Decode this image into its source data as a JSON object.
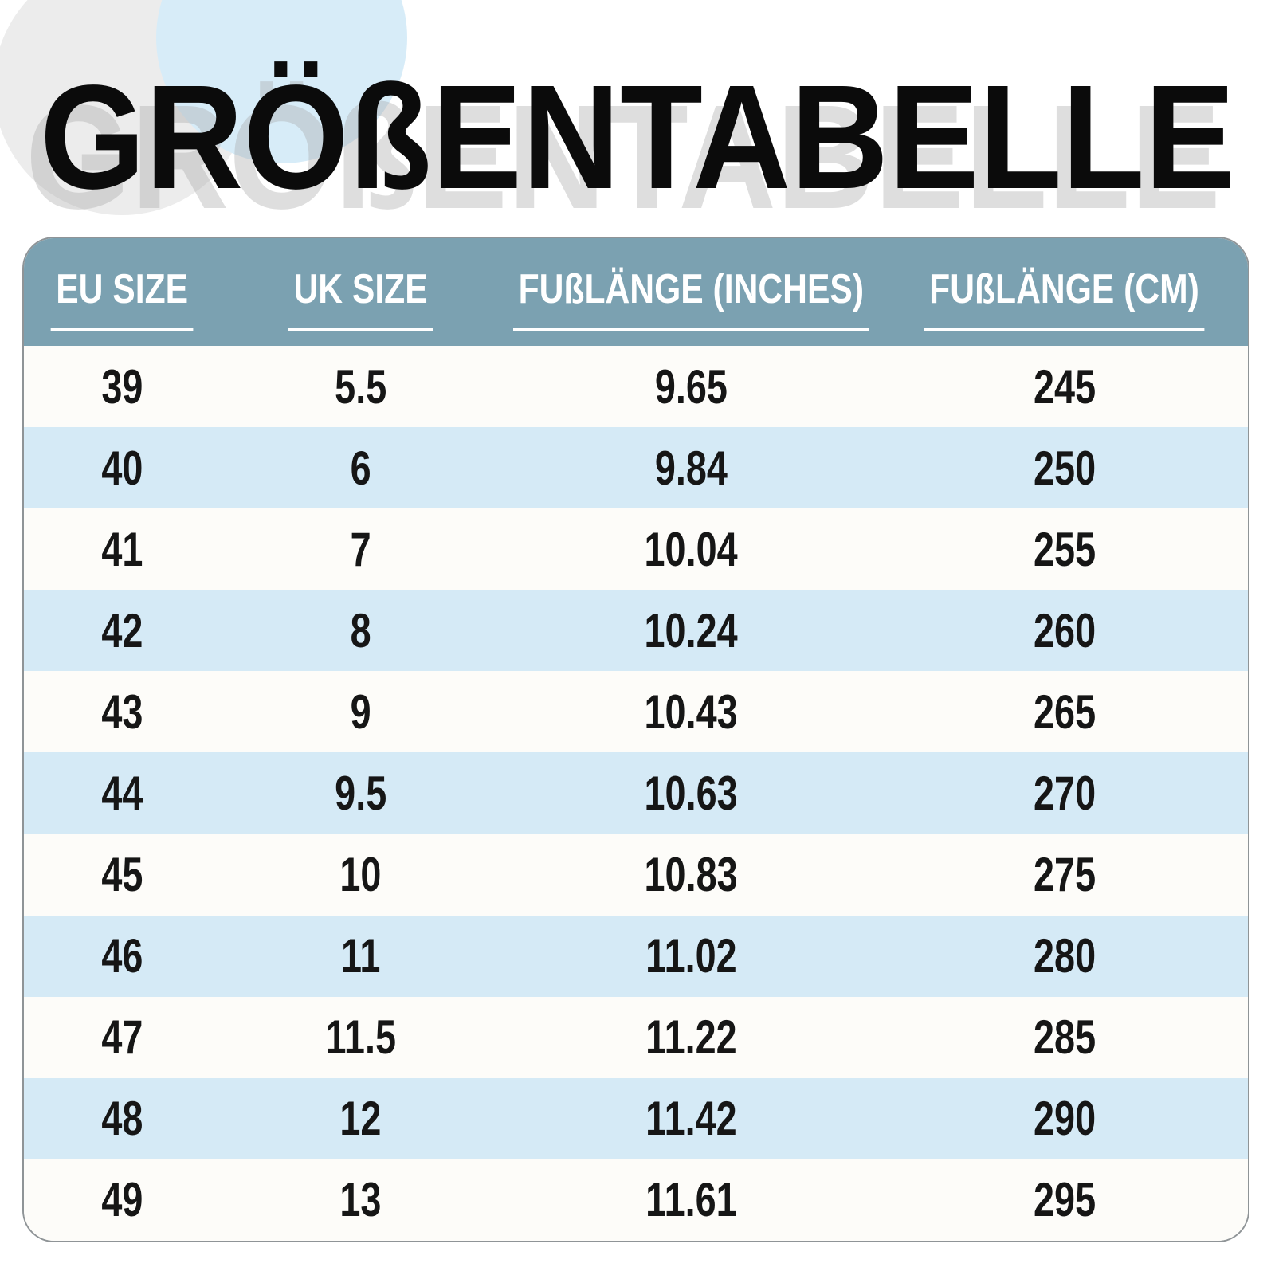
{
  "title": {
    "text": "GRÖßENTABELLE"
  },
  "chart_data": {
    "type": "table",
    "title": "GRÖßENTABELLE",
    "columns": [
      "EU SIZE",
      "UK SIZE",
      "FUßLÄNGE (INCHES)",
      "FUßLÄNGE (CM)"
    ],
    "rows": [
      [
        "39",
        "5.5",
        "9.65",
        "245"
      ],
      [
        "40",
        "6",
        "9.84",
        "250"
      ],
      [
        "41",
        "7",
        "10.04",
        "255"
      ],
      [
        "42",
        "8",
        "10.24",
        "260"
      ],
      [
        "43",
        "9",
        "10.43",
        "265"
      ],
      [
        "44",
        "9.5",
        "10.63",
        "270"
      ],
      [
        "45",
        "10",
        "10.83",
        "275"
      ],
      [
        "46",
        "11",
        "11.02",
        "280"
      ],
      [
        "47",
        "11.5",
        "11.22",
        "285"
      ],
      [
        "48",
        "12",
        "11.42",
        "290"
      ],
      [
        "49",
        "13",
        "11.61",
        "295"
      ]
    ],
    "layout": {
      "header_position": "top",
      "row_striping": "white-and-light-blue-alternating",
      "grid": "off"
    }
  },
  "palette": {
    "page_background": "#ffffff",
    "header_background": "#7ba1b1",
    "header_text": "#ffffff",
    "row_white": "#fdfcf9",
    "row_blue": "#d5eaf6",
    "cell_text": "#161616",
    "title_text": "#0b0b0b",
    "title_shadow": "#e0e0e0",
    "table_border": "#8f9497",
    "circle_gray": "#ececec",
    "circle_blue": "#d7ecf8"
  }
}
